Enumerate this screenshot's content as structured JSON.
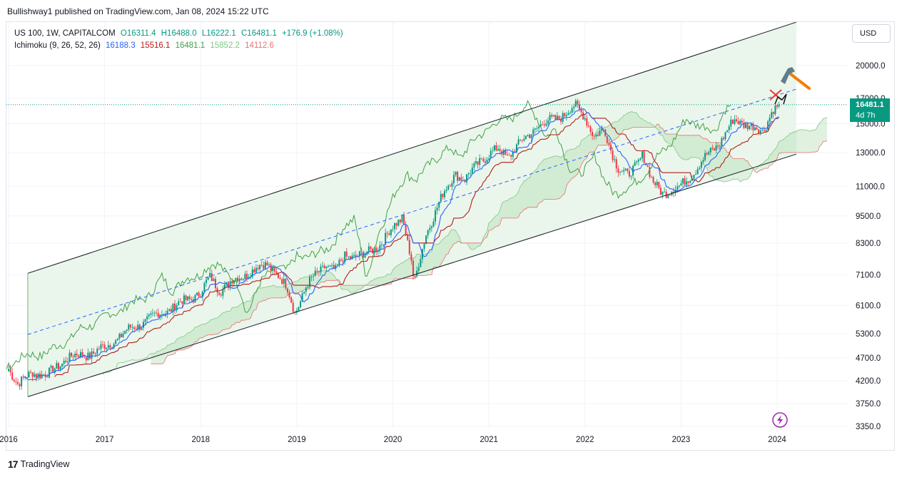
{
  "header": {
    "publish_line": "Bullishway1 published on TradingView.com, Jan 08, 2024 15:22 UTC"
  },
  "legend": {
    "symbol": "US 100, 1W, CAPITALCOM",
    "ohlc": {
      "open": "O16311.4",
      "high": "H16488.0",
      "low": "L16222.1",
      "close": "C16481.1",
      "change": "+176.9 (+1.08%)"
    },
    "indicator": "Ichimoku (9, 26, 52, 26)",
    "ichimoku_values": [
      {
        "value": "16188.3",
        "color": "#2962ff"
      },
      {
        "value": "15516.1",
        "color": "#b71c1c"
      },
      {
        "value": "16481.1",
        "color": "#43a047"
      },
      {
        "value": "15852.2",
        "color": "#a5d6a7"
      },
      {
        "value": "14112.6",
        "color": "#ef9a9a"
      }
    ]
  },
  "currency_button": "USD",
  "last_price": {
    "value": "16481.1",
    "countdown": "4d 7h"
  },
  "footer": {
    "brand": "TradingView",
    "logo_mark": "17"
  },
  "colors": {
    "up": "#089981",
    "down": "#f23645",
    "tenkan": "#2962ff",
    "kijun": "#b71c1c",
    "chikou": "#43a047",
    "channel": "#131722",
    "channel_fill": "#e8f5e9"
  },
  "chart_data": {
    "type": "candlestick",
    "scale": "log",
    "x_ticks": [
      "2016",
      "2017",
      "2018",
      "2019",
      "2020",
      "2021",
      "2022",
      "2023",
      "2024"
    ],
    "y_ticks": [
      20000,
      17000,
      15000,
      13000,
      11000,
      9500,
      8300,
      7100,
      6100,
      5300,
      4700,
      4200,
      3750,
      3350
    ],
    "y_tick_labels": [
      "20000.0",
      "17000.0",
      "15000.0",
      "13000.0",
      "11000.0",
      "9500.0",
      "8300.0",
      "7100.0",
      "6100.0",
      "5300.0",
      "4700.0",
      "4200.0",
      "3750.0",
      "3350.0"
    ],
    "ylim": [
      3300,
      25500
    ],
    "xlim": [
      2015.98,
      2025.0
    ],
    "last_close": 16481.1,
    "close_path": [
      [
        2016.0,
        4500
      ],
      [
        2016.1,
        4100
      ],
      [
        2016.25,
        4400
      ],
      [
        2016.4,
        4300
      ],
      [
        2016.5,
        4500
      ],
      [
        2016.6,
        4700
      ],
      [
        2016.85,
        4800
      ],
      [
        2017.0,
        4950
      ],
      [
        2017.25,
        5400
      ],
      [
        2017.5,
        5750
      ],
      [
        2017.75,
        6100
      ],
      [
        2018.0,
        6500
      ],
      [
        2018.1,
        7000
      ],
      [
        2018.2,
        6600
      ],
      [
        2018.3,
        6800
      ],
      [
        2018.5,
        7200
      ],
      [
        2018.7,
        7500
      ],
      [
        2018.8,
        7100
      ],
      [
        2018.9,
        6600
      ],
      [
        2018.98,
        5900
      ],
      [
        2019.1,
        6700
      ],
      [
        2019.3,
        7500
      ],
      [
        2019.4,
        7200
      ],
      [
        2019.5,
        7800
      ],
      [
        2019.7,
        7800
      ],
      [
        2019.9,
        8400
      ],
      [
        2020.1,
        9500
      ],
      [
        2020.2,
        7500
      ],
      [
        2020.22,
        6700
      ],
      [
        2020.35,
        8800
      ],
      [
        2020.5,
        10300
      ],
      [
        2020.65,
        11800
      ],
      [
        2020.75,
        11300
      ],
      [
        2020.9,
        12500
      ],
      [
        2021.1,
        13200
      ],
      [
        2021.2,
        12800
      ],
      [
        2021.5,
        14800
      ],
      [
        2021.7,
        15400
      ],
      [
        2021.9,
        16300
      ],
      [
        2022.0,
        15600
      ],
      [
        2022.1,
        14000
      ],
      [
        2022.2,
        14500
      ],
      [
        2022.35,
        12000
      ],
      [
        2022.45,
        11500
      ],
      [
        2022.6,
        13000
      ],
      [
        2022.7,
        11200
      ],
      [
        2022.8,
        10700
      ],
      [
        2022.98,
        10900
      ],
      [
        2023.2,
        12300
      ],
      [
        2023.4,
        13700
      ],
      [
        2023.55,
        15200
      ],
      [
        2023.7,
        15000
      ],
      [
        2023.8,
        14500
      ],
      [
        2023.85,
        14300
      ],
      [
        2023.95,
        16200
      ],
      [
        2024.02,
        16481.1
      ]
    ],
    "channel": {
      "upper": [
        [
          2016.2,
          7150
        ],
        [
          2024.2,
          24800
        ]
      ],
      "lower": [
        [
          2016.2,
          3880
        ],
        [
          2024.2,
          12900
        ]
      ],
      "mid": [
        [
          2016.2,
          5280
        ],
        [
          2024.2,
          17800
        ]
      ]
    },
    "annotations": [
      "hammer-icon",
      "cross-mark",
      "last-price-line",
      "lightning-icon"
    ]
  }
}
